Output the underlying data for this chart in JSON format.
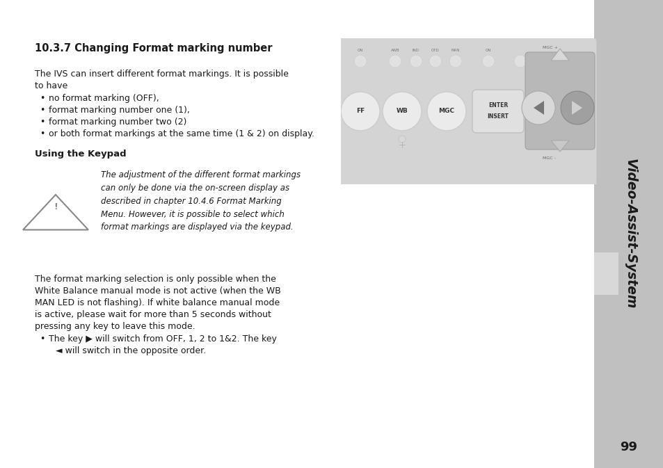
{
  "page_bg": "#ffffff",
  "sidebar_bg": "#c0c0c0",
  "sidebar_text": "Video-Assist-System",
  "sidebar_text_color": "#1a1a1a",
  "page_number": "99",
  "title": "10.3.7 Changing Format marking number",
  "body_text_1a": "The IVS can insert different format markings. It is possible",
  "body_text_1b": "to have",
  "bullets_1": [
    "no format marking (OFF),",
    "format marking number one (1),",
    "format marking number two (2)",
    "or both format markings at the same time (1 & 2) on display."
  ],
  "subheading": "Using the Keypad",
  "warning_text_lines": [
    "The adjustment of the different format markings",
    "can only be done via the on-screen display as",
    "described in chapter 10.4.6 Format Marking",
    "Menu. However, it is possible to select which",
    "format markings are displayed via the keypad."
  ],
  "body_text_2_lines": [
    "The format marking selection is only possible when the",
    "White Balance manual mode is not active (when the WB",
    "MAN LED is not flashing). If white balance manual mode",
    "is active, please wait for more than 5 seconds without",
    "pressing any key to leave this mode."
  ],
  "bullet_2_line1": "The key ▶ will switch from OFF, 1, 2 to 1&2. The key",
  "bullet_2_line2": "◄ will switch in the opposite order.",
  "keypad_top_labels": [
    "ON",
    "AWB",
    "IND",
    "OTD",
    "MAN",
    "ON"
  ],
  "keypad_main_buttons": [
    "FF",
    "WB",
    "MGC"
  ],
  "keypad_enter_line1": "ENTER",
  "keypad_enter_line2": "INSERT",
  "keypad_mgc_plus": "MGC +",
  "keypad_mgc_minus": "MGC -"
}
